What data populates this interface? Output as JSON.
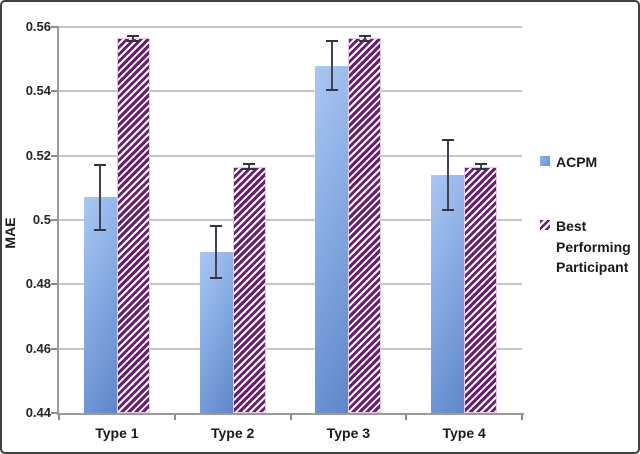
{
  "chart_data": {
    "type": "bar",
    "title": "",
    "xlabel": "",
    "ylabel": "MAE",
    "categories": [
      "Type 1",
      "Type 2",
      "Type 3",
      "Type 4"
    ],
    "series": [
      {
        "name": "ACPM",
        "style": "solid",
        "color": "#7BA3DC",
        "values": [
          0.507,
          0.49,
          0.548,
          0.514
        ],
        "error_bars": [
          0.01,
          0.008,
          0.0075,
          0.011
        ]
      },
      {
        "name": "Best Performing Participant",
        "style": "diagonal-hatch",
        "color": "#691E70",
        "values": [
          0.5565,
          0.5165,
          0.5565,
          0.5165
        ],
        "error_bars": [
          0.0008,
          0.0008,
          0.0008,
          0.0008
        ]
      }
    ],
    "ylim": [
      0.44,
      0.56
    ],
    "yticks": [
      {
        "v": 0.44,
        "label": "0.44"
      },
      {
        "v": 0.46,
        "label": "0.46"
      },
      {
        "v": 0.48,
        "label": "0.48"
      },
      {
        "v": 0.5,
        "label": "0.5"
      },
      {
        "v": 0.52,
        "label": "0.52"
      },
      {
        "v": 0.54,
        "label": "0.54"
      },
      {
        "v": 0.56,
        "label": "0.56"
      }
    ],
    "grid": true,
    "legend_position": "right"
  },
  "colors": {
    "acpm_gradient_light": "#ABC7F2",
    "acpm_gradient_dark": "#5E86C9",
    "hatch_purple": "#691E70",
    "error_bar": "#3F4354",
    "gridline": "#C6C6C6",
    "axis": "#9A9A9A",
    "text": "#1A1A1A"
  }
}
